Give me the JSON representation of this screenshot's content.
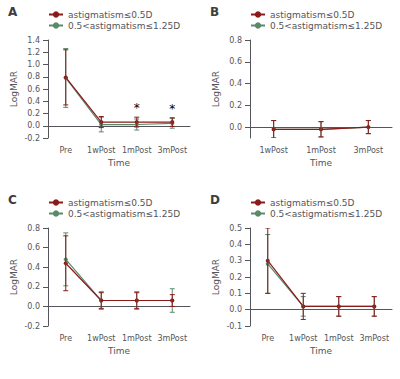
{
  "chart_data": [
    {
      "type": "line",
      "title": "A",
      "categories": [
        "Pre",
        "1wPost",
        "1mPost",
        "3mPost"
      ],
      "series": [
        {
          "name": "astigmatism≤0.5D",
          "color": "#8B1A1A",
          "marker": "circle",
          "values": [
            0.79,
            0.06,
            0.06,
            0.06
          ],
          "errors": [
            0.45,
            0.09,
            0.08,
            0.07
          ]
        },
        {
          "name": "0.5<astigmatism≤1.25D",
          "color": "#5A8A6A",
          "marker": "circle",
          "values": [
            0.78,
            0.02,
            0.02,
            0.04
          ],
          "errors": [
            0.48,
            0.12,
            0.09,
            0.08
          ]
        }
      ],
      "xlabel": "Time",
      "ylabel": "LogMAR",
      "ylim": [
        -0.2,
        1.4
      ],
      "yticks": [
        -0.2,
        {
          "value": 0,
          "label": "0.0"
        },
        0.2,
        0.4,
        0.6,
        0.8,
        {
          "value": 1,
          "label": "1.0"
        },
        1.2,
        1.4
      ],
      "annotations": [
        {
          "x": "1mPost",
          "text": "*"
        },
        {
          "x": "3mPost",
          "text": "*"
        }
      ],
      "grid": false,
      "legend": "upper left"
    },
    {
      "type": "line",
      "title": "B",
      "categories": [
        "1wPost",
        "1mPost",
        "3mPost"
      ],
      "series": [
        {
          "name": "astigmatism≤0.5D",
          "color": "#8B1A1A",
          "marker": "circle",
          "values": [
            -0.02,
            -0.02,
            0.0
          ],
          "errors": [
            0.08,
            0.07,
            0.06
          ]
        },
        {
          "name": "0.5<astigmatism≤1.25D",
          "color": "#5A8A6A",
          "marker": "circle",
          "values": [
            -0.02,
            -0.02,
            0.0
          ],
          "errors": [
            0.08,
            0.07,
            0.06
          ]
        }
      ],
      "xlabel": "Time",
      "ylabel": "LogMAR",
      "ylim": [
        -0.1,
        0.8
      ],
      "yticks": [
        {
          "value": 0,
          "label": "0.0"
        },
        0.2,
        0.4,
        0.6,
        0.8
      ],
      "grid": false,
      "legend": "upper left"
    },
    {
      "type": "line",
      "title": "C",
      "categories": [
        "Pre",
        "1wPost",
        "1mPost",
        "3mPost"
      ],
      "series": [
        {
          "name": "astigmatism≤0.5D",
          "color": "#8B1A1A",
          "marker": "circle",
          "values": [
            0.44,
            0.06,
            0.06,
            0.06
          ],
          "errors": [
            0.28,
            0.08,
            0.08,
            0.06
          ]
        },
        {
          "name": "0.5<astigmatism≤1.25D",
          "color": "#5A8A6A",
          "marker": "circle",
          "values": [
            0.48,
            0.06,
            0.06,
            0.06
          ],
          "errors": [
            0.27,
            0.09,
            0.09,
            0.12
          ]
        }
      ],
      "xlabel": "Time",
      "ylabel": "LogMAR",
      "ylim": [
        -0.2,
        0.8
      ],
      "yticks": [
        -0.2,
        {
          "value": 0,
          "label": "0.0"
        },
        0.2,
        0.4,
        0.6,
        0.8
      ],
      "grid": false,
      "legend": "upper left"
    },
    {
      "type": "line",
      "title": "D",
      "categories": [
        "Pre",
        "1wPost",
        "1mPost",
        "3mPost"
      ],
      "series": [
        {
          "name": "astigmatism≤0.5D",
          "color": "#8B1A1A",
          "marker": "circle",
          "values": [
            0.3,
            0.02,
            0.02,
            0.02
          ],
          "errors": [
            0.2,
            0.08,
            0.06,
            0.06
          ]
        },
        {
          "name": "0.5<astigmatism≤1.25D",
          "color": "#5A8A6A",
          "marker": "circle",
          "values": [
            0.28,
            0.02,
            0.02,
            0.02
          ],
          "errors": [
            0.18,
            0.06,
            0.06,
            0.06
          ]
        }
      ],
      "xlabel": "Time",
      "ylabel": "LogMAR",
      "ylim": [
        -0.1,
        0.5
      ],
      "yticks": [
        -0.1,
        {
          "value": 0,
          "label": "0.0"
        },
        0.1,
        0.2,
        0.3,
        0.4,
        0.5
      ],
      "grid": false,
      "legend": "upper left"
    }
  ]
}
